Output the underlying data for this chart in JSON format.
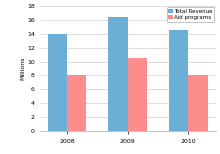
{
  "categories": [
    "2008",
    "2009",
    "2010"
  ],
  "total_revenue": [
    14.0,
    16.5,
    14.5
  ],
  "aid_programs": [
    8.0,
    10.5,
    8.0
  ],
  "bar_color_revenue": "#6baed6",
  "bar_color_aid": "#fc8d8d",
  "ylabel": "Millions",
  "ylim": [
    0,
    18
  ],
  "yticks": [
    0,
    2,
    4,
    6,
    8,
    10,
    12,
    14,
    16,
    18
  ],
  "legend_labels": [
    "Total Revenue",
    "Aid programs"
  ],
  "background_color": "#ffffff",
  "plot_bg_color": "#ffffff",
  "grid_color": "#d0d0d0",
  "bar_width": 0.32
}
